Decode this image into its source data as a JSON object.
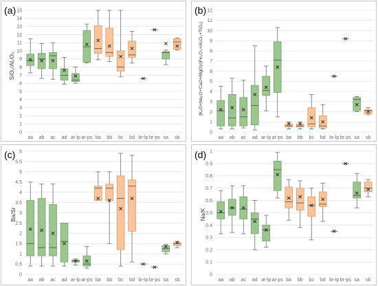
{
  "colors": {
    "green": "#9cc58f",
    "green_edge": "#6f9a63",
    "orange": "#f8c49c",
    "orange_edge": "#d9945f",
    "whisker": "#6b6b6b"
  },
  "chart_data": [
    {
      "id": "a",
      "label": "(a)",
      "type": "box",
      "ylabel": "SiO₂/Al₂O₃",
      "ylim": [
        0,
        15
      ],
      "yticks": [
        0,
        1,
        2,
        3,
        4,
        5,
        6,
        7,
        8,
        9,
        10,
        11,
        12,
        13,
        14,
        15
      ],
      "grid": true,
      "categories": [
        "aa",
        "ab",
        "ac",
        "ad",
        "ar-lp",
        "ar-ps",
        "ba",
        "bb",
        "bc",
        "bd",
        "br-lp",
        "br-ps",
        "sa",
        "sb"
      ],
      "groups": [
        "green",
        "green",
        "green",
        "green",
        "green",
        "green",
        "orange",
        "orange",
        "orange",
        "orange",
        "none",
        "none",
        "green",
        "orange"
      ],
      "boxes": [
        {
          "min": 7.3,
          "q1": 8.2,
          "median": 8.8,
          "q3": 9.6,
          "max": 11.5,
          "mean": 8.9
        },
        {
          "min": 6.6,
          "q1": 7.8,
          "median": 9.0,
          "q3": 9.7,
          "max": 10.9,
          "mean": 8.8
        },
        {
          "min": 6.5,
          "q1": 7.8,
          "median": 9.4,
          "q3": 9.8,
          "max": 11.0,
          "mean": 8.8
        },
        {
          "min": 5.9,
          "q1": 6.4,
          "median": 7.0,
          "q3": 7.8,
          "max": 9.2,
          "mean": 7.6
        },
        {
          "min": 6.0,
          "q1": 6.2,
          "median": 6.4,
          "q3": 7.2,
          "max": 8.0,
          "mean": 6.9
        },
        {
          "min": 8.5,
          "q1": 8.6,
          "median": 10.5,
          "q3": 12.5,
          "max": 13.3,
          "mean": 10.8
        },
        {
          "min": 8.9,
          "q1": 9.7,
          "median": 10.3,
          "q3": 13.1,
          "max": 15.0,
          "mean": 11.3
        },
        {
          "min": 8.7,
          "q1": 9.3,
          "median": 9.8,
          "q3": 12.8,
          "max": 15.0,
          "mean": 10.6
        },
        {
          "min": 6.8,
          "q1": 7.5,
          "median": 8.0,
          "q3": 10.0,
          "max": 15.0,
          "mean": 9.3
        },
        {
          "min": 8.5,
          "q1": 9.2,
          "median": 9.5,
          "q3": 11.2,
          "max": 12.4,
          "mean": 10.3
        },
        {
          "mean": 6.6
        },
        {
          "mean": 12.6
        },
        {
          "min": 8.3,
          "q1": 9.0,
          "median": 9.8,
          "q3": 9.9,
          "max": 10.1,
          "mean": 10.9
        },
        {
          "min": 10.1,
          "q1": 10.2,
          "median": 11.1,
          "q3": 11.5,
          "max": 11.6,
          "mean": 10.6
        }
      ]
    },
    {
      "id": "b",
      "label": "(b)",
      "type": "box",
      "ylabel": "(K₂O+Na₂O+CaO+MgO)/(Fe₂O₃+Al₂O₃+TiO₂)",
      "ylim": [
        0,
        12
      ],
      "yticks": [
        0,
        1,
        2,
        3,
        4,
        5,
        6,
        7,
        8,
        9,
        10,
        11,
        12
      ],
      "grid": true,
      "categories": [
        "aa",
        "ab",
        "ac",
        "ad",
        "ar-lp",
        "ar-ps",
        "ba",
        "bb",
        "bc",
        "bd",
        "br-lp",
        "br-ps",
        "sa",
        "sb"
      ],
      "groups": [
        "green",
        "green",
        "green",
        "green",
        "green",
        "green",
        "orange",
        "orange",
        "orange",
        "orange",
        "none",
        "none",
        "green",
        "orange"
      ],
      "boxes": [
        {
          "min": 0.3,
          "q1": 0.6,
          "median": 2.1,
          "q3": 3.1,
          "max": 4.5,
          "mean": 2.2
        },
        {
          "min": 0.3,
          "q1": 0.6,
          "median": 1.4,
          "q3": 3.7,
          "max": 5.3,
          "mean": 2.4
        },
        {
          "min": 0.4,
          "q1": 0.6,
          "median": 1.5,
          "q3": 3.4,
          "max": 5.1,
          "mean": 2.2
        },
        {
          "min": 0.2,
          "q1": 0.7,
          "median": 2.6,
          "q3": 4.6,
          "max": 8.5,
          "mean": 3.7
        },
        {
          "min": 2.1,
          "q1": 3.6,
          "median": 4.1,
          "q3": 5.5,
          "max": 6.5,
          "mean": 4.4
        },
        {
          "min": 1.5,
          "q1": 3.9,
          "median": 7.1,
          "q3": 8.9,
          "max": 10.3,
          "mean": 6.4
        },
        {
          "min": 0.3,
          "q1": 0.5,
          "median": 0.6,
          "q3": 0.8,
          "max": 1.0,
          "mean": 0.8
        },
        {
          "min": 0.3,
          "q1": 0.5,
          "median": 0.6,
          "q3": 0.8,
          "max": 1.0,
          "mean": 0.8
        },
        {
          "min": 0.3,
          "q1": 0.5,
          "median": 0.8,
          "q3": 2.4,
          "max": 3.7,
          "mean": 1.4
        },
        {
          "min": 0.3,
          "q1": 0.4,
          "median": 0.6,
          "q3": 1.6,
          "max": 2.7,
          "mean": 1.0
        },
        {
          "mean": 5.5
        },
        {
          "mean": 9.2
        },
        {
          "min": 2.0,
          "q1": 2.1,
          "median": 3.2,
          "q3": 3.4,
          "max": 3.5,
          "mean": 2.7
        },
        {
          "min": 1.7,
          "q1": 1.8,
          "median": 2.1,
          "q3": 2.2,
          "max": 2.4,
          "mean": 2.0
        }
      ]
    },
    {
      "id": "c",
      "label": "(c)",
      "type": "box",
      "ylabel": "Ba/Sr",
      "ylim": [
        0,
        6
      ],
      "yticks": [
        0,
        0.5,
        1,
        1.5,
        2,
        2.5,
        3,
        3.5,
        4,
        4.5,
        5,
        5.5,
        6
      ],
      "grid": true,
      "categories": [
        "aa",
        "ab",
        "ac",
        "ad",
        "ar-lp",
        "ar-ps",
        "ba",
        "bb",
        "bc",
        "bd",
        "br-lp",
        "br-ps",
        "sa",
        "sb"
      ],
      "groups": [
        "green",
        "green",
        "green",
        "green",
        "green",
        "green",
        "orange",
        "orange",
        "orange",
        "orange",
        "none",
        "none",
        "green",
        "orange"
      ],
      "boxes": [
        {
          "min": 0.4,
          "q1": 0.9,
          "median": 1.5,
          "q3": 3.6,
          "max": 4.5,
          "mean": 2.2
        },
        {
          "min": 0.4,
          "q1": 0.9,
          "median": 1.3,
          "q3": 3.7,
          "max": 4.4,
          "mean": 2.15
        },
        {
          "min": 0.4,
          "q1": 0.9,
          "median": 1.3,
          "q3": 3.4,
          "max": 4.4,
          "mean": 2.0
        },
        {
          "min": 0.4,
          "q1": 0.6,
          "median": 1.6,
          "q3": 2.5,
          "max": 2.5,
          "mean": 1.5
        },
        {
          "min": 0.45,
          "q1": 0.6,
          "median": 0.65,
          "q3": 0.7,
          "max": 0.75,
          "mean": 0.65
        },
        {
          "min": 0.3,
          "q1": 0.4,
          "median": 0.5,
          "q3": 0.9,
          "max": 1.35,
          "mean": 0.65
        },
        {
          "min": 3.6,
          "q1": 3.6,
          "median": 4.2,
          "q3": 4.3,
          "max": 5.0,
          "mean": 3.7
        },
        {
          "min": 1.5,
          "q1": 3.6,
          "median": 4.2,
          "q3": 4.4,
          "max": 5.0,
          "mean": 3.6
        },
        {
          "min": 0.4,
          "q1": 1.2,
          "median": 3.7,
          "q3": 4.8,
          "max": 5.9,
          "mean": 3.2
        },
        {
          "min": 0.6,
          "q1": 2.1,
          "median": 4.3,
          "q3": 4.6,
          "max": 5.8,
          "mean": 3.7
        },
        {
          "mean": 0.5
        },
        {
          "mean": 0.35
        },
        {
          "min": 1.0,
          "q1": 1.1,
          "median": 1.25,
          "q3": 1.4,
          "max": 1.45,
          "mean": 1.35
        },
        {
          "min": 1.3,
          "q1": 1.4,
          "median": 1.5,
          "q3": 1.55,
          "max": 1.6,
          "mean": 1.55
        }
      ]
    },
    {
      "id": "d",
      "label": "(d)",
      "type": "box",
      "ylabel": "Na/K",
      "ylim": [
        0,
        1
      ],
      "yticks": [
        0,
        0.1,
        0.2,
        0.3,
        0.4,
        0.5,
        0.6,
        0.7,
        0.8,
        0.9,
        1
      ],
      "grid": true,
      "categories": [
        "aa",
        "ab",
        "ac",
        "ad",
        "ar-lp",
        "ar-ps",
        "ba",
        "bb",
        "bc",
        "bd",
        "br-lp",
        "br-ps",
        "sa",
        "sb"
      ],
      "groups": [
        "green",
        "green",
        "green",
        "green",
        "green",
        "green",
        "orange",
        "orange",
        "orange",
        "orange",
        "none",
        "none",
        "green",
        "orange"
      ],
      "boxes": [
        {
          "min": 0.33,
          "q1": 0.45,
          "median": 0.5,
          "q3": 0.59,
          "max": 0.68,
          "mean": 0.51
        },
        {
          "min": 0.34,
          "q1": 0.48,
          "median": 0.54,
          "q3": 0.61,
          "max": 0.72,
          "mean": 0.54
        },
        {
          "min": 0.33,
          "q1": 0.45,
          "median": 0.53,
          "q3": 0.63,
          "max": 0.72,
          "mean": 0.54
        },
        {
          "min": 0.2,
          "q1": 0.33,
          "median": 0.45,
          "q3": 0.5,
          "max": 0.6,
          "mean": 0.43
        },
        {
          "min": 0.22,
          "q1": 0.27,
          "median": 0.36,
          "q3": 0.4,
          "max": 0.48,
          "mean": 0.36
        },
        {
          "min": 0.62,
          "q1": 0.68,
          "median": 0.85,
          "q3": 0.92,
          "max": 0.99,
          "mean": 0.81
        },
        {
          "min": 0.44,
          "q1": 0.54,
          "median": 0.59,
          "q3": 0.71,
          "max": 0.77,
          "mean": 0.62
        },
        {
          "min": 0.38,
          "q1": 0.52,
          "median": 0.58,
          "q3": 0.7,
          "max": 0.76,
          "mean": 0.63
        },
        {
          "min": 0.28,
          "q1": 0.47,
          "median": 0.56,
          "q3": 0.63,
          "max": 0.7,
          "mean": 0.56
        },
        {
          "min": 0.43,
          "q1": 0.55,
          "median": 0.57,
          "q3": 0.67,
          "max": 0.74,
          "mean": 0.61
        },
        {
          "mean": 0.35
        },
        {
          "mean": 0.9
        },
        {
          "min": 0.54,
          "q1": 0.62,
          "median": 0.64,
          "q3": 0.75,
          "max": 0.82,
          "mean": 0.66
        },
        {
          "min": 0.63,
          "q1": 0.67,
          "median": 0.7,
          "q3": 0.75,
          "max": 0.77,
          "mean": 0.69
        }
      ]
    }
  ]
}
